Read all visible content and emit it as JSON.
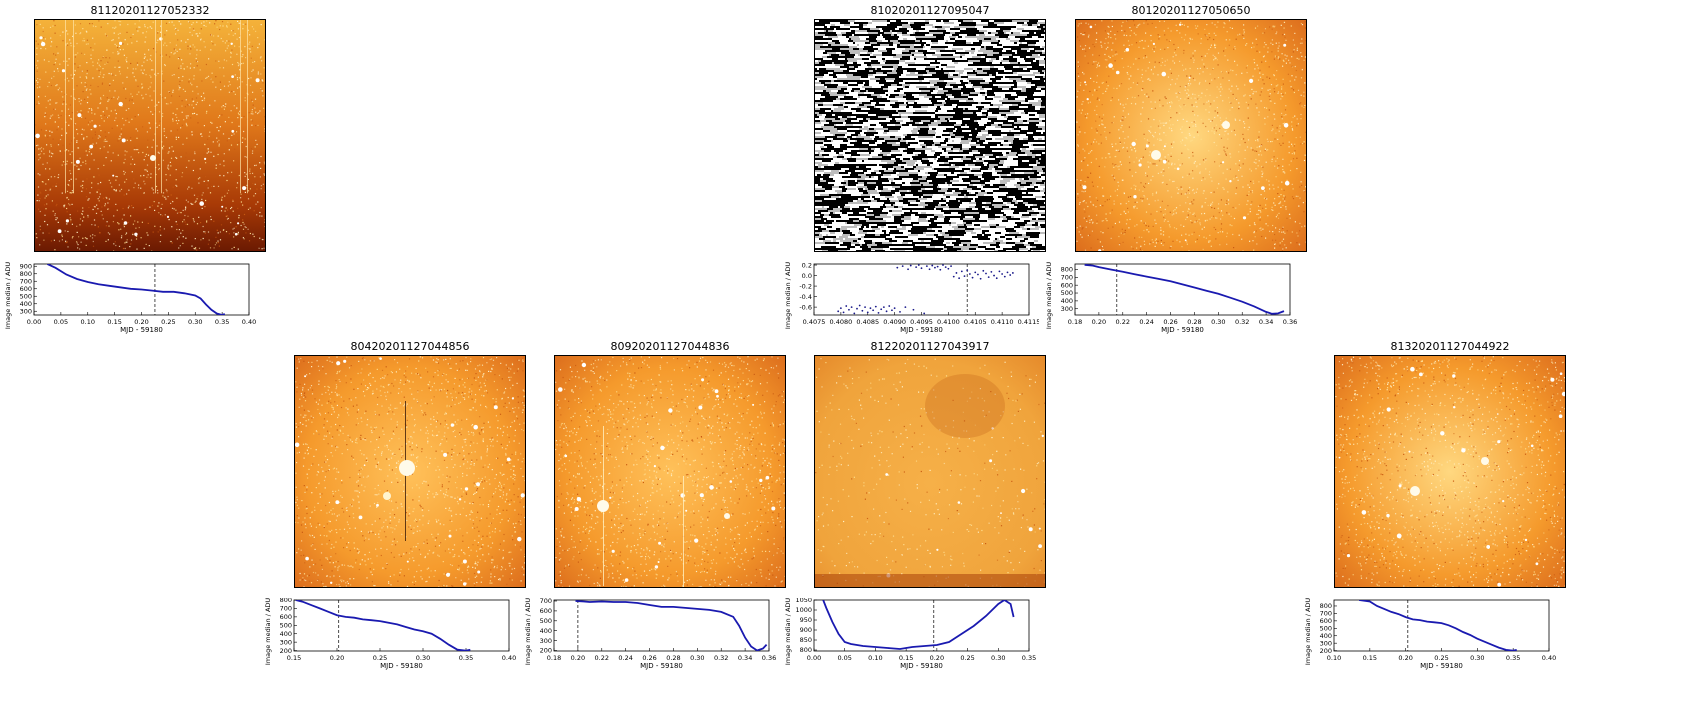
{
  "panels": [
    {
      "id": "p1",
      "title": "81120201127052332",
      "style": "orange-streaks",
      "position": "row1-col1",
      "chart_data": {
        "type": "line",
        "xlabel": "MJD - 59180",
        "ylabel": "Image median / ADU",
        "xlim": [
          0.0,
          0.4
        ],
        "ylim": [
          250,
          930
        ],
        "xticks": [
          "0.00",
          "0.05",
          "0.10",
          "0.15",
          "0.20",
          "0.25",
          "0.30",
          "0.35",
          "0.40"
        ],
        "xtick_values": [
          0.0,
          0.05,
          0.1,
          0.15,
          0.2,
          0.25,
          0.3,
          0.35,
          0.4
        ],
        "yticks": [
          "300",
          "400",
          "500",
          "600",
          "700",
          "800",
          "900"
        ],
        "ytick_values": [
          300,
          400,
          500,
          600,
          700,
          800,
          900
        ],
        "vline": 0.225,
        "series": [
          {
            "x": [
              0.025,
              0.04,
              0.06,
              0.08,
              0.1,
              0.12,
              0.14,
              0.16,
              0.18,
              0.2,
              0.22,
              0.24,
              0.26,
              0.28,
              0.3,
              0.31,
              0.32,
              0.33,
              0.34,
              0.35,
              0.355
            ],
            "y": [
              930,
              880,
              790,
              730,
              690,
              660,
              640,
              620,
              600,
              590,
              575,
              560,
              560,
              540,
              510,
              470,
              390,
              320,
              270,
              250,
              265
            ]
          }
        ]
      }
    },
    {
      "id": "p2",
      "title": "81020201127095047",
      "style": "bw-noise",
      "position": "row1-col4",
      "chart_data": {
        "type": "scatter",
        "xlabel": "MJD - 59180",
        "ylabel": "Image median / ADU",
        "xlim": [
          0.4075,
          0.4115
        ],
        "ylim": [
          -0.75,
          0.22
        ],
        "xticks": [
          "0.4075",
          "0.4080",
          "0.4085",
          "0.4090",
          "0.4095",
          "0.4100",
          "0.4105",
          "0.4110",
          "0.4115"
        ],
        "xtick_values": [
          0.4075,
          0.408,
          0.4085,
          0.409,
          0.4095,
          0.41,
          0.4105,
          0.411,
          0.4115
        ],
        "yticks": [
          "-0.6",
          "-0.4",
          "-0.2",
          "0.0",
          "0.2"
        ],
        "ytick_values": [
          -0.6,
          -0.4,
          -0.2,
          0.0,
          0.2
        ],
        "vline": 0.41035,
        "series": [
          {
            "x": [
              0.40795,
              0.408,
              0.40805,
              0.4081,
              0.40815,
              0.4082,
              0.40825,
              0.4083,
              0.40835,
              0.4084,
              0.40845,
              0.4085,
              0.40855,
              0.4086,
              0.40865,
              0.4087,
              0.40875,
              0.4088,
              0.40885,
              0.4089,
              0.40895,
              0.409,
              0.40905,
              0.4091,
              0.40915,
              0.4092,
              0.40925,
              0.4093,
              0.40935,
              0.4094,
              0.40945,
              0.4095,
              0.40955,
              0.4096,
              0.40965,
              0.4097,
              0.40975,
              0.4098,
              0.40985,
              0.4099,
              0.40995,
              0.41,
              0.41005,
              0.4101,
              0.41015,
              0.4102,
              0.41025,
              0.4103,
              0.41035,
              0.4104,
              0.41045,
              0.4105,
              0.41055,
              0.4106,
              0.41065,
              0.4107,
              0.41075,
              0.4108,
              0.41085,
              0.4109,
              0.41095,
              0.411,
              0.41105,
              0.4111,
              0.41115,
              0.4112
            ],
            "y": [
              -0.68,
              -0.62,
              -0.7,
              -0.58,
              -0.65,
              -0.6,
              -0.72,
              -0.63,
              -0.57,
              -0.67,
              -0.6,
              -0.7,
              -0.62,
              -0.66,
              -0.59,
              -0.71,
              -0.64,
              -0.6,
              -0.68,
              -0.58,
              -0.66,
              -0.62,
              0.15,
              -0.69,
              0.18,
              -0.6,
              0.12,
              0.19,
              -0.65,
              0.16,
              0.2,
              0.14,
              -0.72,
              0.18,
              0.12,
              0.19,
              0.15,
              0.17,
              0.11,
              0.2,
              0.16,
              0.13,
              0.18,
              -0.02,
              0.05,
              -0.05,
              0.08,
              -0.01,
              0.1,
              0.03,
              -0.04,
              0.06,
              0.02,
              -0.06,
              0.09,
              0.04,
              -0.03,
              0.07,
              0.0,
              -0.05,
              0.08,
              0.03,
              -0.02,
              0.06,
              0.01,
              0.05
            ]
          }
        ]
      }
    },
    {
      "id": "p3",
      "title": "80120201127050650",
      "style": "orange-bright",
      "position": "row1-col5",
      "chart_data": {
        "type": "line",
        "xlabel": "MJD - 59180",
        "ylabel": "Image median / ADU",
        "xlim": [
          0.18,
          0.36
        ],
        "ylim": [
          220,
          870
        ],
        "xticks": [
          "0.18",
          "0.20",
          "0.22",
          "0.24",
          "0.26",
          "0.28",
          "0.30",
          "0.32",
          "0.34",
          "0.36"
        ],
        "xtick_values": [
          0.18,
          0.2,
          0.22,
          0.24,
          0.26,
          0.28,
          0.3,
          0.32,
          0.34,
          0.36
        ],
        "yticks": [
          "300",
          "400",
          "500",
          "600",
          "700",
          "800"
        ],
        "ytick_values": [
          300,
          400,
          500,
          600,
          700,
          800
        ],
        "vline": 0.215,
        "series": [
          {
            "x": [
              0.188,
              0.195,
              0.2,
              0.21,
              0.22,
              0.23,
              0.24,
              0.25,
              0.26,
              0.27,
              0.28,
              0.29,
              0.3,
              0.31,
              0.32,
              0.33,
              0.34,
              0.345,
              0.35,
              0.355
            ],
            "y": [
              860,
              850,
              830,
              800,
              770,
              740,
              710,
              680,
              650,
              610,
              570,
              530,
              490,
              440,
              390,
              330,
              260,
              235,
              240,
              270
            ]
          }
        ]
      }
    },
    {
      "id": "p4",
      "title": "80420201127044856",
      "style": "orange-dense",
      "position": "row2-col2",
      "chart_data": {
        "type": "line",
        "xlabel": "MJD - 59180",
        "ylabel": "Image median / ADU",
        "xlim": [
          0.15,
          0.4
        ],
        "ylim": [
          195,
          800
        ],
        "xticks": [
          "0.15",
          "0.20",
          "0.25",
          "0.30",
          "0.35",
          "0.40"
        ],
        "xtick_values": [
          0.15,
          0.2,
          0.25,
          0.3,
          0.35,
          0.4
        ],
        "yticks": [
          "200",
          "300",
          "400",
          "500",
          "600",
          "700",
          "800"
        ],
        "ytick_values": [
          200,
          300,
          400,
          500,
          600,
          700,
          800
        ],
        "vline": 0.202,
        "series": [
          {
            "x": [
              0.152,
              0.16,
              0.17,
              0.18,
              0.19,
              0.2,
              0.21,
              0.22,
              0.23,
              0.24,
              0.25,
              0.26,
              0.27,
              0.28,
              0.29,
              0.3,
              0.31,
              0.32,
              0.33,
              0.34,
              0.35,
              0.355
            ],
            "y": [
              800,
              780,
              740,
              700,
              660,
              620,
              600,
              590,
              570,
              560,
              550,
              530,
              510,
              480,
              450,
              430,
              400,
              340,
              270,
              210,
              200,
              210
            ]
          }
        ]
      }
    },
    {
      "id": "p5",
      "title": "80920201127044836",
      "style": "orange-stars",
      "position": "row2-col3",
      "chart_data": {
        "type": "line",
        "xlabel": "MJD - 59180",
        "ylabel": "Image median / ADU",
        "xlim": [
          0.18,
          0.36
        ],
        "ylim": [
          195,
          710
        ],
        "xticks": [
          "0.18",
          "0.20",
          "0.22",
          "0.24",
          "0.26",
          "0.28",
          "0.30",
          "0.32",
          "0.34",
          "0.36"
        ],
        "xtick_values": [
          0.18,
          0.2,
          0.22,
          0.24,
          0.26,
          0.28,
          0.3,
          0.32,
          0.34,
          0.36
        ],
        "yticks": [
          "200",
          "300",
          "400",
          "500",
          "600",
          "700"
        ],
        "ytick_values": [
          200,
          300,
          400,
          500,
          600,
          700
        ],
        "vline": 0.2,
        "series": [
          {
            "x": [
              0.198,
              0.205,
              0.21,
              0.22,
              0.23,
              0.24,
              0.25,
              0.26,
              0.27,
              0.28,
              0.29,
              0.3,
              0.31,
              0.32,
              0.33,
              0.335,
              0.34,
              0.345,
              0.35,
              0.355,
              0.358
            ],
            "y": [
              700,
              695,
              690,
              695,
              690,
              690,
              680,
              660,
              640,
              640,
              630,
              620,
              610,
              590,
              540,
              450,
              330,
              240,
              200,
              220,
              260
            ]
          }
        ]
      }
    },
    {
      "id": "p6",
      "title": "81220201127043917",
      "style": "orange-smooth",
      "position": "row2-col4",
      "chart_data": {
        "type": "line",
        "xlabel": "MJD - 59180",
        "ylabel": "Image median / ADU",
        "xlim": [
          0.0,
          0.35
        ],
        "ylim": [
          795,
          1050
        ],
        "xticks": [
          "0.00",
          "0.05",
          "0.10",
          "0.15",
          "0.20",
          "0.25",
          "0.30",
          "0.35"
        ],
        "xtick_values": [
          0.0,
          0.05,
          0.1,
          0.15,
          0.2,
          0.25,
          0.3,
          0.35
        ],
        "yticks": [
          "800",
          "850",
          "900",
          "950",
          "1000",
          "1050"
        ],
        "ytick_values": [
          800,
          850,
          900,
          950,
          1000,
          1050
        ],
        "vline": 0.195,
        "series": [
          {
            "x": [
              0.015,
              0.02,
              0.03,
              0.04,
              0.05,
              0.06,
              0.08,
              0.1,
              0.12,
              0.14,
              0.16,
              0.18,
              0.2,
              0.22,
              0.24,
              0.26,
              0.28,
              0.3,
              0.31,
              0.32,
              0.325
            ],
            "y": [
              1050,
              1010,
              940,
              880,
              840,
              830,
              820,
              815,
              810,
              805,
              815,
              820,
              825,
              840,
              880,
              920,
              970,
              1030,
              1050,
              1030,
              965
            ]
          }
        ]
      }
    },
    {
      "id": "p7",
      "title": "81320201127044922",
      "style": "orange-bright",
      "position": "row2-col6",
      "chart_data": {
        "type": "line",
        "xlabel": "MJD - 59180",
        "ylabel": "Image median / ADU",
        "xlim": [
          0.1,
          0.4
        ],
        "ylim": [
          195,
          880
        ],
        "xticks": [
          "0.10",
          "0.15",
          "0.20",
          "0.25",
          "0.30",
          "0.35",
          "0.40"
        ],
        "xtick_values": [
          0.1,
          0.15,
          0.2,
          0.25,
          0.3,
          0.35,
          0.4
        ],
        "yticks": [
          "200",
          "300",
          "400",
          "500",
          "600",
          "700",
          "800"
        ],
        "ytick_values": [
          200,
          300,
          400,
          500,
          600,
          700,
          800
        ],
        "vline": 0.203,
        "series": [
          {
            "x": [
              0.135,
              0.15,
              0.16,
              0.17,
              0.18,
              0.19,
              0.2,
              0.21,
              0.22,
              0.23,
              0.24,
              0.25,
              0.26,
              0.27,
              0.28,
              0.29,
              0.3,
              0.31,
              0.32,
              0.33,
              0.34,
              0.35,
              0.355
            ],
            "y": [
              880,
              860,
              800,
              760,
              720,
              690,
              650,
              620,
              610,
              590,
              580,
              570,
              540,
              500,
              450,
              410,
              360,
              320,
              280,
              240,
              210,
              200,
              210
            ]
          }
        ]
      }
    }
  ]
}
